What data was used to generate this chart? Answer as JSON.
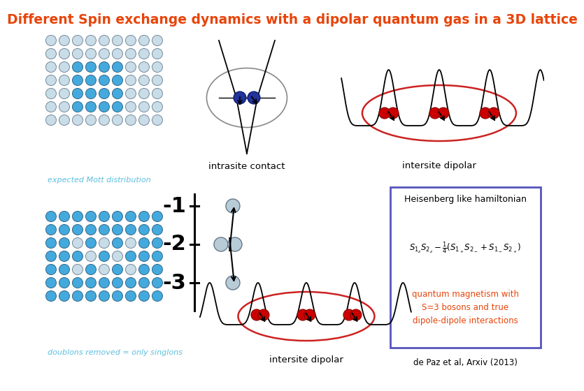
{
  "title": "Different Spin exchange dynamics with a dipolar quantum gas in a 3D lattice",
  "title_color": "#e8440a",
  "title_fontsize": 13.5,
  "bg_color": "#ffffff",
  "text_expected_mott": "expected Mott distribution",
  "text_expected_color": "#5bbfde",
  "text_doublons": "doublons removed = only singlons",
  "text_doublons_color": "#5bbfde",
  "text_intrasite": "intrasite contact",
  "text_intersite1": "intersite dipolar",
  "text_intersite2": "intersite dipolar",
  "text_heisenberg": "Heisenberg like hamiltonian",
  "text_quantum": "quantum magnetism with\nS=3 bosons and true\ndipole-dipole interactions",
  "text_quantum_color": "#e8440a",
  "text_depaz": "de Paz et al, Arxiv (2013)",
  "lattice_filled_color": "#44aadd",
  "lattice_light_color": "#c8dde8",
  "spin_color_dark": "#cc0000",
  "spin_color_blue": "#223399",
  "box_border_color": "#5555bb"
}
